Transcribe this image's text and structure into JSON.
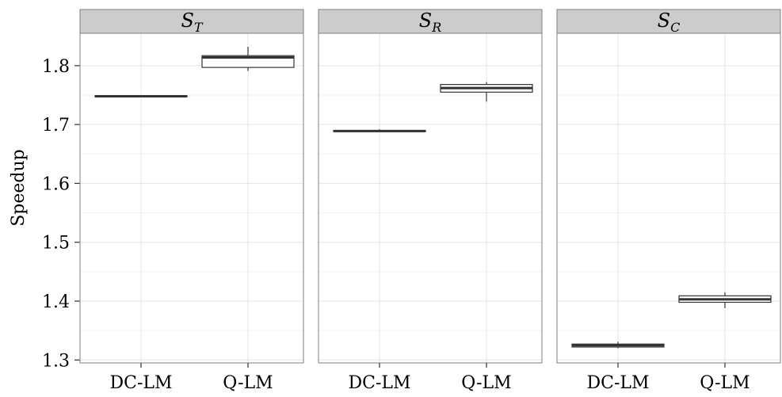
{
  "chart_data": {
    "type": "boxplot",
    "ylabel": "Speedup",
    "ylim": [
      1.295,
      1.855
    ],
    "yticks": [
      "1.3",
      "1.4",
      "1.5",
      "1.6",
      "1.7",
      "1.8"
    ],
    "categories": [
      "DC-LM",
      "Q-LM"
    ],
    "grid": true,
    "panels": [
      {
        "strip_label": "S",
        "strip_sub": "T",
        "boxes": [
          {
            "category": "DC-LM",
            "min": 1.746,
            "q1": 1.747,
            "median": 1.748,
            "q3": 1.749,
            "max": 1.75
          },
          {
            "category": "Q-LM",
            "min": 1.791,
            "q1": 1.797,
            "median": 1.814,
            "q3": 1.817,
            "max": 1.832
          }
        ]
      },
      {
        "strip_label": "S",
        "strip_sub": "R",
        "boxes": [
          {
            "category": "DC-LM",
            "min": 1.687,
            "q1": 1.688,
            "median": 1.689,
            "q3": 1.69,
            "max": 1.692
          },
          {
            "category": "Q-LM",
            "min": 1.739,
            "q1": 1.755,
            "median": 1.762,
            "q3": 1.768,
            "max": 1.772
          }
        ]
      },
      {
        "strip_label": "S",
        "strip_sub": "C",
        "boxes": [
          {
            "category": "DC-LM",
            "min": 1.32,
            "q1": 1.322,
            "median": 1.325,
            "q3": 1.327,
            "max": 1.331
          },
          {
            "category": "Q-LM",
            "min": 1.388,
            "q1": 1.398,
            "median": 1.403,
            "q3": 1.409,
            "max": 1.415
          }
        ]
      }
    ],
    "colors": {
      "panel_bg": "#ffffff",
      "strip_bg": "#cccccc",
      "border": "#7f7f7f",
      "grid_major": "#e5e5e5",
      "grid_minor": "#f2f2f2",
      "box_line": "#333333"
    }
  }
}
